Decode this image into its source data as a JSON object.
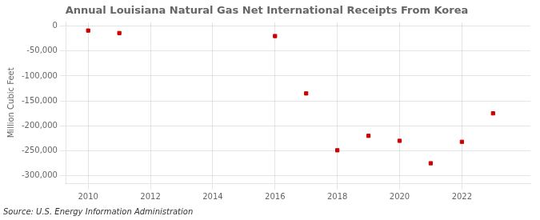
{
  "chart_data": {
    "type": "scatter",
    "title": "Annual Louisiana Natural Gas Net International Receipts From Korea",
    "ylabel": "Million Cubic Feet",
    "annotation": "Source: U.S. Energy Information Administration",
    "x": [
      2010,
      2011,
      2016,
      2017,
      2018,
      2019,
      2020,
      2021,
      2022,
      2023
    ],
    "values": [
      -9000,
      -14000,
      -20000,
      -135000,
      -249000,
      -220000,
      -230000,
      -275000,
      -232000,
      -175000
    ],
    "color": "#cc0000",
    "marker": "square",
    "xlim": [
      2009.3,
      2024.2
    ],
    "ylim": [
      -315000,
      8000
    ],
    "xticks": [
      2010,
      2012,
      2014,
      2016,
      2018,
      2020,
      2022
    ],
    "yticks": [
      0,
      {
        "value": -50000,
        "label": "-50,000"
      },
      {
        "value": -100000,
        "label": "-100,000"
      },
      {
        "value": -150000,
        "label": "-150,000"
      },
      {
        "value": -200000,
        "label": "-200,000"
      },
      {
        "value": -250000,
        "label": "-250,000"
      },
      {
        "value": -300000,
        "label": "-300,000"
      }
    ],
    "grid": true
  }
}
